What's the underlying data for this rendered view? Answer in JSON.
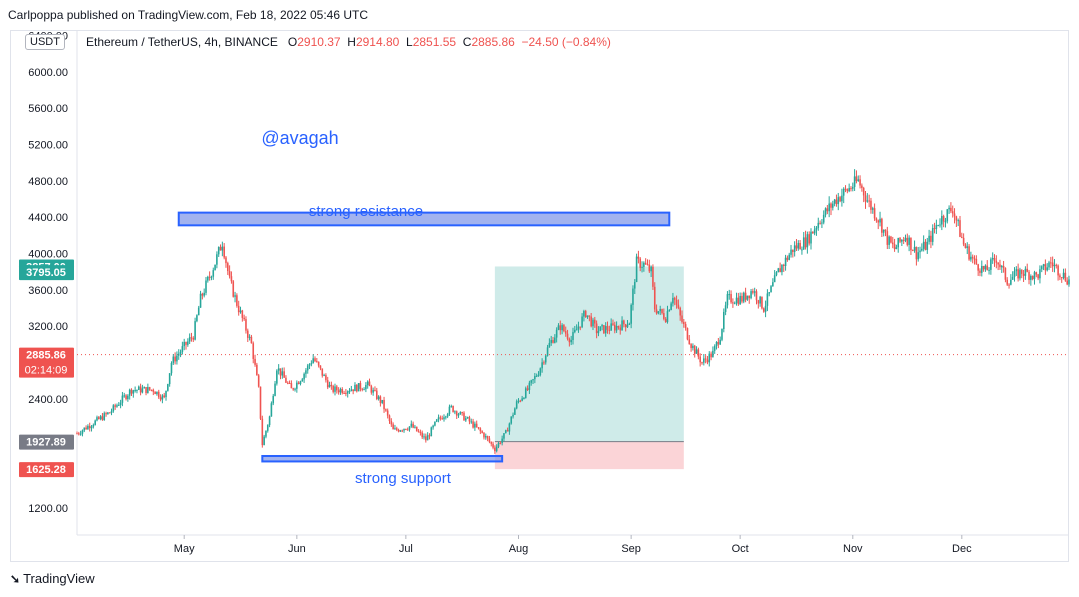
{
  "header": {
    "published": "Carlpoppa published on TradingView.com, Feb 18, 2022 05:46 UTC"
  },
  "legend": {
    "currency_button": "USDT",
    "symbol": "Ethereum / TetherUS, 4h, BINANCE",
    "o_label": "O",
    "o_value": "2910.37",
    "h_label": "H",
    "h_value": "2914.80",
    "l_label": "L",
    "l_value": "2851.55",
    "c_label": "C",
    "c_value": "2885.86",
    "change": "−24.50 (−0.84%)"
  },
  "annotations": {
    "watermark": "@avagah",
    "resistance": "strong resistance",
    "support": "strong support"
  },
  "price_tags": {
    "tp": "3857.00",
    "high": "3795.05",
    "last": "2885.86",
    "countdown": "02:14:09",
    "entry": "1927.89",
    "stop": "1625.28"
  },
  "footer": {
    "brand": "TradingView"
  },
  "colors": {
    "up": "#26a69a",
    "down": "#ef5350",
    "zone_fill": "#7b93e8",
    "zone_stroke": "#2962ff",
    "profit": "#26a69a",
    "loss": "#f7a9b0",
    "tp_tag": "#26a69a",
    "high_tag": "#26a69a",
    "entry_tag": "#787b86",
    "stop_tag": "#ef5350"
  },
  "chart_data": {
    "type": "candlestick",
    "title": "Ethereum / TetherUS, 4h, BINANCE",
    "y_ticks": [
      1200,
      2400,
      2800,
      3200,
      3600,
      4000,
      4400,
      4800,
      5200,
      5600,
      6000,
      6400
    ],
    "y_tick_labels": [
      "1200.00",
      "2400.00",
      "2800.00",
      "3200.00",
      "3600.00",
      "4000.00",
      "4400.00",
      "4800.00",
      "5200.00",
      "5600.00",
      "6000.00",
      "6400.00"
    ],
    "ylim": [
      900,
      6450
    ],
    "x_labels": [
      "May",
      "Jun",
      "Jul",
      "Aug",
      "Sep",
      "Oct",
      "Nov",
      "Dec"
    ],
    "x_label_positions": [
      0.5,
      31.5,
      61.5,
      92.5,
      123.5,
      153.5,
      184.5,
      214.5
    ],
    "xlim": [
      -29,
      244
    ],
    "price_path": [
      [
        -29,
        2020
      ],
      [
        -20,
        2250
      ],
      [
        -14,
        2500
      ],
      [
        -8,
        2500
      ],
      [
        -5,
        2400
      ],
      [
        -3,
        2800
      ],
      [
        3,
        3100
      ],
      [
        5,
        3500
      ],
      [
        9,
        3900
      ],
      [
        11,
        4130
      ],
      [
        13,
        3700
      ],
      [
        15,
        3450
      ],
      [
        19,
        3000
      ],
      [
        21,
        2500
      ],
      [
        22,
        1900
      ],
      [
        24,
        2200
      ],
      [
        26,
        2750
      ],
      [
        30,
        2500
      ],
      [
        33,
        2650
      ],
      [
        36,
        2850
      ],
      [
        41,
        2500
      ],
      [
        45,
        2500
      ],
      [
        51,
        2550
      ],
      [
        55,
        2350
      ],
      [
        58,
        2050
      ],
      [
        63,
        2100
      ],
      [
        67,
        1950
      ],
      [
        70,
        2150
      ],
      [
        74,
        2300
      ],
      [
        79,
        2150
      ],
      [
        83,
        2000
      ],
      [
        86,
        1850
      ],
      [
        89,
        2020
      ],
      [
        92,
        2350
      ],
      [
        95,
        2500
      ],
      [
        98,
        2700
      ],
      [
        101,
        3000
      ],
      [
        104,
        3200
      ],
      [
        107,
        3050
      ],
      [
        111,
        3350
      ],
      [
        114,
        3150
      ],
      [
        120,
        3200
      ],
      [
        123,
        3250
      ],
      [
        125,
        3900
      ],
      [
        127,
        3880
      ],
      [
        129,
        3800
      ],
      [
        130,
        3400
      ],
      [
        133,
        3300
      ],
      [
        135,
        3550
      ],
      [
        137,
        3300
      ],
      [
        140,
        3000
      ],
      [
        143,
        2800
      ],
      [
        146,
        2900
      ],
      [
        148,
        3100
      ],
      [
        150,
        3500
      ],
      [
        154,
        3500
      ],
      [
        157,
        3600
      ],
      [
        160,
        3400
      ],
      [
        164,
        3800
      ],
      [
        168,
        4050
      ],
      [
        172,
        4150
      ],
      [
        175,
        4350
      ],
      [
        180,
        4600
      ],
      [
        183,
        4700
      ],
      [
        186,
        4800
      ],
      [
        189,
        4550
      ],
      [
        192,
        4350
      ],
      [
        194,
        4150
      ],
      [
        196,
        4050
      ],
      [
        199,
        4200
      ],
      [
        202,
        4000
      ],
      [
        205,
        4100
      ],
      [
        208,
        4350
      ],
      [
        212,
        4500
      ],
      [
        215,
        4100
      ],
      [
        218,
        3900
      ],
      [
        221,
        3800
      ],
      [
        224,
        3950
      ],
      [
        227,
        3700
      ],
      [
        231,
        3800
      ],
      [
        235,
        3750
      ],
      [
        239,
        3900
      ],
      [
        244,
        3700
      ]
    ],
    "resistance_zone": {
      "label": "strong resistance",
      "y": [
        4310,
        4450
      ],
      "x": [
        -1,
        134
      ]
    },
    "support_zone": {
      "label": "strong support",
      "y": [
        1710,
        1770
      ],
      "x": [
        22,
        88
      ]
    },
    "position": {
      "x": [
        86,
        138
      ],
      "target": 3857.0,
      "entry": 1927.89,
      "stop": 1625.28
    },
    "last_price": 2885.86,
    "range_high": 3795.05
  }
}
